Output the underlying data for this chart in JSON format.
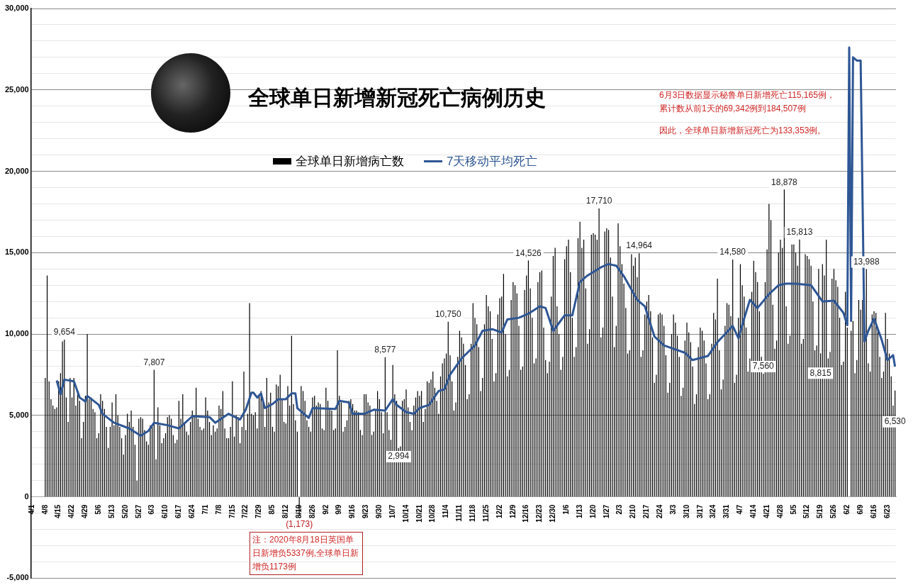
{
  "chart_data": {
    "type": "bar",
    "title": "全球单日新增新冠死亡病例历史",
    "categories": [
      "4/1",
      null,
      null,
      null,
      null,
      null,
      null,
      "4/8",
      null,
      null,
      null,
      null,
      null,
      null,
      "4/15",
      null,
      null,
      null,
      null,
      null,
      null,
      "4/22",
      null,
      null,
      null,
      null,
      null,
      null,
      "4/29",
      null,
      null,
      null,
      null,
      null,
      null,
      "5/6",
      null,
      null,
      null,
      null,
      null,
      null,
      "5/13",
      null,
      null,
      null,
      null,
      null,
      null,
      "5/20",
      null,
      null,
      null,
      null,
      null,
      null,
      "5/27",
      null,
      null,
      null,
      null,
      null,
      null,
      "6/3",
      null,
      null,
      null,
      null,
      null,
      null,
      "6/10",
      null,
      null,
      null,
      null,
      null,
      null,
      "6/17",
      null,
      null,
      null,
      null,
      null,
      null,
      "6/24",
      null,
      null,
      null,
      null,
      null,
      null,
      "7/1",
      null,
      null,
      null,
      null,
      null,
      null,
      "7/8",
      null,
      null,
      null,
      null,
      null,
      null,
      "7/15",
      null,
      null,
      null,
      null,
      null,
      null,
      "7/22",
      null,
      null,
      null,
      null,
      null,
      null,
      "7/29",
      null,
      null,
      null,
      null,
      null,
      null,
      "8/5",
      null,
      null,
      null,
      null,
      null,
      null,
      "8/12",
      null,
      null,
      null,
      null,
      null,
      null,
      "8/19",
      null,
      null,
      null,
      null,
      null,
      null,
      "8/26",
      null,
      null,
      null,
      null,
      null,
      null,
      "9/2",
      null,
      null,
      null,
      null,
      null,
      null,
      "9/9",
      null,
      null,
      null,
      null,
      null,
      null,
      "9/16",
      null,
      null,
      null,
      null,
      null,
      null,
      "9/23",
      null,
      null,
      null,
      null,
      null,
      null,
      "9/30",
      null,
      null,
      null,
      null,
      null,
      null,
      "10/7",
      null,
      null,
      null,
      null,
      null,
      null,
      "10/14",
      null,
      null,
      null,
      null,
      null,
      null,
      "10/21",
      null,
      null,
      null,
      null,
      null,
      null,
      "10/28",
      null,
      null,
      null,
      null,
      null,
      null,
      "11/4",
      null,
      null,
      null,
      null,
      null,
      null,
      "11/11",
      null,
      null,
      null,
      null,
      null,
      null,
      "11/18",
      null,
      null,
      null,
      null,
      null,
      null,
      "11/25",
      null,
      null,
      null,
      null,
      null,
      null,
      "12/2",
      null,
      null,
      null,
      null,
      null,
      null,
      "12/9",
      null,
      null,
      null,
      null,
      null,
      null,
      "12/16",
      null,
      null,
      null,
      null,
      null,
      null,
      "12/23",
      null,
      null,
      null,
      null,
      null,
      null,
      "12/30",
      null,
      null,
      null,
      null,
      null,
      null,
      "1/6",
      null,
      null,
      null,
      null,
      null,
      null,
      "1/13",
      null,
      null,
      null,
      null,
      null,
      null,
      "1/20",
      null,
      null,
      null,
      null,
      null,
      null,
      "1/27",
      null,
      null,
      null,
      null,
      null,
      null,
      "2/3",
      null,
      null,
      null,
      null,
      null,
      null,
      "2/10",
      null,
      null,
      null,
      null,
      null,
      null,
      "2/17",
      null,
      null,
      null,
      null,
      null,
      null,
      "2/24",
      null,
      null,
      null,
      null,
      null,
      null,
      "3/3",
      null,
      null,
      null,
      null,
      null,
      null,
      "3/10",
      null,
      null,
      null,
      null,
      null,
      null,
      "3/17",
      null,
      null,
      null,
      null,
      null,
      null,
      "3/24",
      null,
      null,
      null,
      null,
      null,
      null,
      "3/31",
      null,
      null,
      null,
      null,
      null,
      null,
      "4/7",
      null,
      null,
      null,
      null,
      null,
      null,
      "4/14",
      null,
      null,
      null,
      null,
      null,
      null,
      "4/21",
      null,
      null,
      null,
      null,
      null,
      null,
      "4/28",
      null,
      null,
      null,
      null,
      null,
      null,
      "5/5",
      null,
      null,
      null,
      null,
      null,
      null,
      "5/12",
      null,
      null,
      null,
      null,
      null,
      null,
      "5/19",
      null,
      null,
      null,
      null,
      null,
      null,
      "5/26",
      null,
      null,
      null,
      null,
      null,
      null,
      "6/2",
      null,
      null,
      null,
      null,
      null,
      null,
      "6/9",
      null,
      null,
      null,
      null,
      null,
      null,
      "6/16",
      null,
      null,
      null,
      null,
      null,
      null,
      "6/23",
      null,
      null,
      null,
      null
    ],
    "series": [
      {
        "name": "全球单日新增病亡数",
        "color": "#000000",
        "values": [
          null,
          null,
          null,
          null,
          null,
          null,
          null,
          7300,
          13600,
          7100,
          6000,
          5600,
          5400,
          5500,
          7100,
          7600,
          9550,
          9654,
          6100,
          4600,
          7300,
          6100,
          7300,
          5600,
          6400,
          5900,
          3600,
          4600,
          6200,
          10000,
          6000,
          6100,
          5400,
          5200,
          3600,
          3900,
          6300,
          5900,
          5400,
          4300,
          3000,
          4300,
          5800,
          4400,
          6300,
          5000,
          4300,
          3600,
          2600,
          3800,
          5100,
          4600,
          5300,
          4300,
          3200,
          1000,
          4800,
          4900,
          4800,
          4100,
          3400,
          3200,
          4400,
          4300,
          7807,
          2300,
          5500,
          4400,
          3300,
          3600,
          3900,
          4900,
          5000,
          4800,
          3800,
          3300,
          3500,
          5900,
          4800,
          6300,
          4600,
          4000,
          3800,
          4600,
          5300,
          5000,
          6700,
          4800,
          4300,
          4100,
          4200,
          6100,
          5300,
          4600,
          3800,
          4400,
          4000,
          4200,
          5600,
          5400,
          6500,
          4200,
          3600,
          3600,
          4300,
          7100,
          3700,
          5000,
          4900,
          3300,
          4300,
          7700,
          4100,
          5100,
          11900,
          5100,
          5000,
          5200,
          4200,
          6300,
          6500,
          5800,
          4300,
          7300,
          5800,
          6400,
          4300,
          4000,
          6900,
          6800,
          7500,
          6000,
          4600,
          4500,
          6800,
          5600,
          9900,
          5700,
          4700,
          4000,
          -1173,
          6800,
          6500,
          5900,
          4700,
          4300,
          4000,
          6100,
          6200,
          5600,
          5800,
          5700,
          4200,
          4100,
          6700,
          5900,
          5400,
          5300,
          4100,
          4200,
          9000,
          6200,
          5800,
          4000,
          4300,
          4700,
          5900,
          6000,
          5700,
          5300,
          5300,
          5200,
          4100,
          3800,
          6300,
          6300,
          5800,
          5600,
          3800,
          4000,
          5300,
          6500,
          6000,
          5200,
          3900,
          8577,
          5200,
          4100,
          3500,
          8100,
          6300,
          5900,
          2994,
          3100,
          5900,
          6000,
          6600,
          5500,
          4600,
          4100,
          5600,
          6100,
          6500,
          6200,
          6500,
          4600,
          5400,
          7100,
          7000,
          7200,
          7700,
          6700,
          5900,
          5100,
          7400,
          8200,
          8500,
          8800,
          10750,
          8700,
          7100,
          5300,
          5800,
          8600,
          10200,
          9800,
          9400,
          8100,
          6000,
          6300,
          9400,
          11900,
          11000,
          10600,
          9200,
          6500,
          7300,
          10600,
          12400,
          11700,
          11400,
          9700,
          7100,
          7600,
          11200,
          12200,
          12300,
          13700,
          10000,
          7400,
          7800,
          12100,
          13200,
          13000,
          12500,
          10500,
          7800,
          8000,
          12700,
          13600,
          14526,
          12800,
          11000,
          8200,
          8500,
          13200,
          13800,
          13900,
          10400,
          8400,
          7600,
          8300,
          12300,
          14800,
          15300,
          11700,
          10000,
          7800,
          8600,
          14600,
          15400,
          15800,
          13800,
          11000,
          8600,
          9200,
          15900,
          16900,
          15300,
          15800,
          12800,
          9400,
          10300,
          16100,
          16200,
          16100,
          15800,
          17710,
          9800,
          10400,
          16300,
          16500,
          16400,
          14700,
          12300,
          9200,
          10500,
          16800,
          15400,
          14300,
          13100,
          11600,
          8800,
          9000,
          14900,
          14200,
          14700,
          13500,
          14964,
          8600,
          9000,
          11200,
          12000,
          12400,
          11400,
          9800,
          7000,
          7500,
          11200,
          11300,
          11200,
          10500,
          8700,
          6400,
          7000,
          10000,
          11200,
          10700,
          9900,
          8600,
          6200,
          6700,
          9600,
          10700,
          10100,
          9500,
          8000,
          5700,
          6300,
          9200,
          10400,
          10200,
          9600,
          8200,
          6000,
          6300,
          9400,
          11300,
          10900,
          13400,
          9000,
          6600,
          7200,
          10500,
          11900,
          11800,
          11100,
          14580,
          7000,
          7500,
          11000,
          14300,
          13000,
          12300,
          10400,
          7700,
          8500,
          12600,
          14500,
          13800,
          13200,
          11400,
          8600,
          7560,
          13200,
          15200,
          18000,
          17000,
          11800,
          9100,
          9600,
          15000,
          15800,
          15300,
          18878,
          11700,
          9400,
          9900,
          15500,
          15500,
          15000,
          14200,
          15813,
          9400,
          9700,
          14900,
          14800,
          14600,
          14200,
          12000,
          9000,
          9300,
          14000,
          8815,
          14300,
          13600,
          15800,
          8500,
          8900,
          13400,
          14000,
          13300,
          12900,
          11000,
          8100,
          8300,
          12600,
          10400,
          null,
          10200,
          10800,
          7600,
          8400,
          12100,
          11500,
          12100,
          10400,
          13988,
          8200,
          7700,
          11200,
          11400,
          11300,
          10400,
          8600,
          7300,
          7700,
          11300,
          9700,
          8800,
          7400,
          5600,
          6530
        ],
        "value_labels": [
          null,
          null,
          null,
          null,
          null,
          null,
          null,
          null,
          null,
          null,
          null,
          null,
          null,
          null,
          null,
          null,
          null,
          "9,654",
          null,
          null,
          null,
          null,
          null,
          null,
          null,
          null,
          null,
          null,
          null,
          null,
          null,
          null,
          null,
          null,
          null,
          null,
          null,
          null,
          null,
          null,
          null,
          null,
          null,
          null,
          null,
          null,
          null,
          null,
          null,
          null,
          null,
          null,
          null,
          null,
          null,
          null,
          null,
          null,
          null,
          null,
          null,
          null,
          null,
          null,
          "7,807",
          null,
          null,
          null,
          null,
          null,
          null,
          null,
          null,
          null,
          null,
          null,
          null,
          null,
          null,
          null,
          null,
          null,
          null,
          null,
          null,
          null,
          null,
          null,
          null,
          null,
          null,
          null,
          null,
          null,
          null,
          null,
          null,
          null,
          null,
          null,
          null,
          null,
          null,
          null,
          null,
          null,
          null,
          null,
          null,
          null,
          null,
          null,
          null,
          null,
          null,
          null,
          null,
          null,
          null,
          null,
          null,
          null,
          null,
          null,
          null,
          null,
          null,
          null,
          null,
          null,
          null,
          null,
          null,
          null,
          null,
          null,
          null,
          null,
          null,
          null,
          "(1,173)",
          null,
          null,
          null,
          null,
          null,
          null,
          null,
          null,
          null,
          null,
          null,
          null,
          null,
          null,
          null,
          null,
          null,
          null,
          null,
          null,
          null,
          null,
          null,
          null,
          null,
          null,
          null,
          null,
          null,
          null,
          null,
          null,
          null,
          null,
          null,
          null,
          null,
          null,
          null,
          null,
          null,
          null,
          null,
          null,
          "8,577",
          null,
          null,
          null,
          null,
          null,
          null,
          "2,994",
          null,
          null,
          null,
          null,
          null,
          null,
          null,
          null,
          null,
          null,
          null,
          null,
          null,
          null,
          null,
          null,
          null,
          null,
          null,
          null,
          null,
          null,
          null,
          null,
          null,
          "10,750",
          null,
          null,
          null,
          null,
          null,
          null,
          null,
          null,
          null,
          null,
          null,
          null,
          null,
          null,
          null,
          null,
          null,
          null,
          null,
          null,
          null,
          null,
          null,
          null,
          null,
          null,
          null,
          null,
          null,
          null,
          null,
          null,
          null,
          null,
          null,
          null,
          null,
          null,
          null,
          null,
          null,
          "14,526",
          null,
          null,
          null,
          null,
          null,
          null,
          null,
          null,
          null,
          null,
          null,
          null,
          null,
          null,
          null,
          null,
          null,
          null,
          null,
          null,
          null,
          null,
          null,
          null,
          null,
          null,
          null,
          null,
          null,
          null,
          null,
          null,
          null,
          null,
          null,
          null,
          "17,710",
          null,
          null,
          null,
          null,
          null,
          null,
          null,
          null,
          null,
          null,
          null,
          null,
          null,
          null,
          null,
          null,
          null,
          null,
          null,
          null,
          "14,964",
          null,
          null,
          null,
          null,
          null,
          null,
          null,
          null,
          null,
          null,
          null,
          null,
          null,
          null,
          null,
          null,
          null,
          null,
          null,
          null,
          null,
          null,
          null,
          null,
          null,
          null,
          null,
          null,
          null,
          null,
          null,
          null,
          null,
          null,
          null,
          null,
          null,
          null,
          null,
          null,
          null,
          null,
          null,
          null,
          null,
          null,
          null,
          null,
          "14,580",
          null,
          null,
          null,
          null,
          null,
          null,
          null,
          null,
          null,
          null,
          null,
          null,
          null,
          null,
          null,
          "7,560",
          null,
          null,
          null,
          null,
          null,
          null,
          null,
          null,
          null,
          null,
          "18,878",
          null,
          null,
          null,
          null,
          null,
          null,
          null,
          "15,813",
          null,
          null,
          null,
          null,
          null,
          null,
          null,
          null,
          null,
          null,
          "8,815",
          null,
          null,
          null,
          null,
          null,
          null,
          null,
          null,
          null,
          null,
          null,
          null,
          null,
          null,
          null,
          null,
          null,
          null,
          null,
          null,
          null,
          null,
          null,
          "13,988",
          null,
          null,
          null,
          null,
          null,
          null,
          null,
          null,
          null,
          null,
          null,
          null,
          null,
          null,
          "6,530"
        ]
      },
      {
        "name": "7天移动平均死亡",
        "type": "line",
        "color": "#2e5694",
        "values": [
          null,
          null,
          null,
          null,
          null,
          null,
          null,
          null,
          null,
          null,
          null,
          null,
          null,
          7150,
          null,
          6300,
          null,
          7200,
          null,
          null,
          null,
          null,
          7100,
          null,
          null,
          6100,
          null,
          null,
          5850,
          6200,
          null,
          null,
          null,
          null,
          null,
          5650,
          null,
          5100,
          null,
          null,
          null,
          null,
          null,
          4550,
          null,
          null,
          null,
          null,
          null,
          null,
          null,
          4200,
          null,
          null,
          null,
          null,
          null,
          3750,
          null,
          null,
          null,
          4050,
          null,
          null,
          4550,
          null,
          null,
          null,
          null,
          null,
          null,
          4400,
          null,
          null,
          null,
          null,
          null,
          4200,
          null,
          null,
          null,
          null,
          null,
          null,
          4950,
          null,
          null,
          null,
          null,
          null,
          null,
          null,
          null,
          4900,
          null,
          null,
          4550,
          null,
          null,
          null,
          null,
          null,
          null,
          5100,
          null,
          null,
          null,
          null,
          null,
          4750,
          null,
          null,
          5350,
          null,
          null,
          6400,
          6400,
          null,
          6100,
          null,
          6350,
          null,
          5450,
          null,
          null,
          null,
          5700,
          null,
          null,
          6000,
          null,
          null,
          null,
          6000,
          null,
          null,
          6350,
          null,
          6350,
          5450,
          null,
          null,
          null,
          null,
          null,
          4850,
          null,
          5450,
          null,
          null,
          null,
          null,
          null,
          null,
          null,
          null,
          null,
          null,
          null,
          5400,
          null,
          5900,
          null,
          null,
          null,
          null,
          5800,
          null,
          5100,
          null,
          null,
          null,
          null,
          null,
          5100,
          null,
          null,
          null,
          null,
          5350,
          null,
          null,
          null,
          null,
          null,
          5300,
          null,
          null,
          null,
          6000,
          null,
          5650,
          null,
          null,
          null,
          null,
          5200,
          null,
          null,
          null,
          5100,
          null,
          null,
          5450,
          null,
          null,
          null,
          null,
          5650,
          null,
          null,
          null,
          null,
          6500,
          null,
          null,
          6600,
          null,
          null,
          7500,
          null,
          null,
          null,
          null,
          null,
          8500,
          null,
          null,
          null,
          null,
          null,
          null,
          9300,
          null,
          null,
          null,
          10200,
          null,
          null,
          null,
          null,
          10300,
          null,
          null,
          null,
          null,
          10100,
          null,
          null,
          10900,
          null,
          null,
          null,
          null,
          null,
          11000,
          null,
          null,
          null,
          null,
          11250,
          null,
          null,
          null,
          null,
          null,
          11700,
          null,
          null,
          11600,
          null,
          null,
          null,
          10200,
          null,
          null,
          null,
          null,
          null,
          11150,
          null,
          null,
          null,
          11150,
          null,
          null,
          null,
          13200,
          null,
          null,
          null,
          13600,
          null,
          null,
          null,
          null,
          null,
          null,
          14100,
          null,
          null,
          null,
          14300,
          null,
          null,
          null,
          14200,
          null,
          null,
          null,
          13550,
          null,
          null,
          null,
          null,
          null,
          null,
          12100,
          null,
          null,
          null,
          11700,
          null,
          null,
          null,
          null,
          9850,
          null,
          null,
          null,
          null,
          9300,
          null,
          null,
          null,
          null,
          null,
          null,
          null,
          null,
          null,
          null,
          8850,
          null,
          null,
          null,
          8400,
          null,
          null,
          null,
          null,
          null,
          null,
          null,
          8650,
          null,
          null,
          null,
          null,
          9500,
          null,
          null,
          null,
          null,
          null,
          null,
          null,
          10500,
          null,
          null,
          9750,
          null,
          null,
          10950,
          null,
          null,
          12100,
          null,
          null,
          null,
          11600,
          null,
          null,
          null,
          null,
          null,
          12450,
          null,
          null,
          null,
          null,
          13000,
          null,
          null,
          null,
          13100,
          null,
          null,
          null,
          null,
          13100,
          null,
          null,
          null,
          null,
          null,
          null,
          null,
          13000,
          null,
          null,
          null,
          null,
          null,
          12000,
          null,
          null,
          null,
          null,
          null,
          12050,
          null,
          null,
          null,
          null,
          11300,
          null,
          10550,
          27600,
          10800,
          27000,
          26900,
          26800,
          26800,
          26800,
          null,
          9550,
          null,
          10200,
          null,
          null,
          10950,
          null,
          null,
          null,
          9650,
          null,
          null,
          8400,
          null,
          null,
          8700,
          8000
        ]
      }
    ],
    "ylim": [
      -5000,
      30000
    ],
    "yticks": [
      {
        "value": -5000,
        "label": "-5,000"
      },
      {
        "value": -4000,
        "label": null
      },
      {
        "value": -3000,
        "label": null
      },
      {
        "value": -2000,
        "label": null
      },
      {
        "value": -1000,
        "label": null
      },
      0,
      {
        "value": 1000,
        "label": null
      },
      {
        "value": 2000,
        "label": null
      },
      {
        "value": 3000,
        "label": null
      },
      {
        "value": 4000,
        "label": null
      },
      {
        "value": 5000,
        "label": "5,000"
      },
      {
        "value": 6000,
        "label": null
      },
      {
        "value": 7000,
        "label": null
      },
      {
        "value": 8000,
        "label": null
      },
      {
        "value": 9000,
        "label": null
      },
      {
        "value": 10000,
        "label": "10,000"
      },
      {
        "value": 11000,
        "label": null
      },
      {
        "value": 12000,
        "label": null
      },
      {
        "value": 13000,
        "label": null
      },
      {
        "value": 14000,
        "label": null
      },
      {
        "value": 15000,
        "label": "15,000"
      },
      {
        "value": 16000,
        "label": null
      },
      {
        "value": 17000,
        "label": null
      },
      {
        "value": 18000,
        "label": null
      },
      {
        "value": 19000,
        "label": null
      },
      {
        "value": 20000,
        "label": "20,000"
      },
      {
        "value": 21000,
        "label": null
      },
      {
        "value": 22000,
        "label": null
      },
      {
        "value": 23000,
        "label": null
      },
      {
        "value": 24000,
        "label": null
      },
      {
        "value": 25000,
        "label": "25,000"
      },
      {
        "value": 26000,
        "label": null
      },
      {
        "value": 27000,
        "label": null
      },
      {
        "value": 28000,
        "label": null
      },
      {
        "value": 29000,
        "label": null
      },
      {
        "value": 30000,
        "label": "30,000"
      }
    ],
    "grid": "y",
    "legend": "top",
    "annotations": [
      "6月3日数据显示秘鲁单日新增死亡115,165例，累计数从前1天的69,342例到184,507例",
      "因此，全球单日新增新冠死亡为133,353例。",
      "注：2020年8月18日英国单日新增负5337例,全球单日新增负1173例"
    ]
  }
}
